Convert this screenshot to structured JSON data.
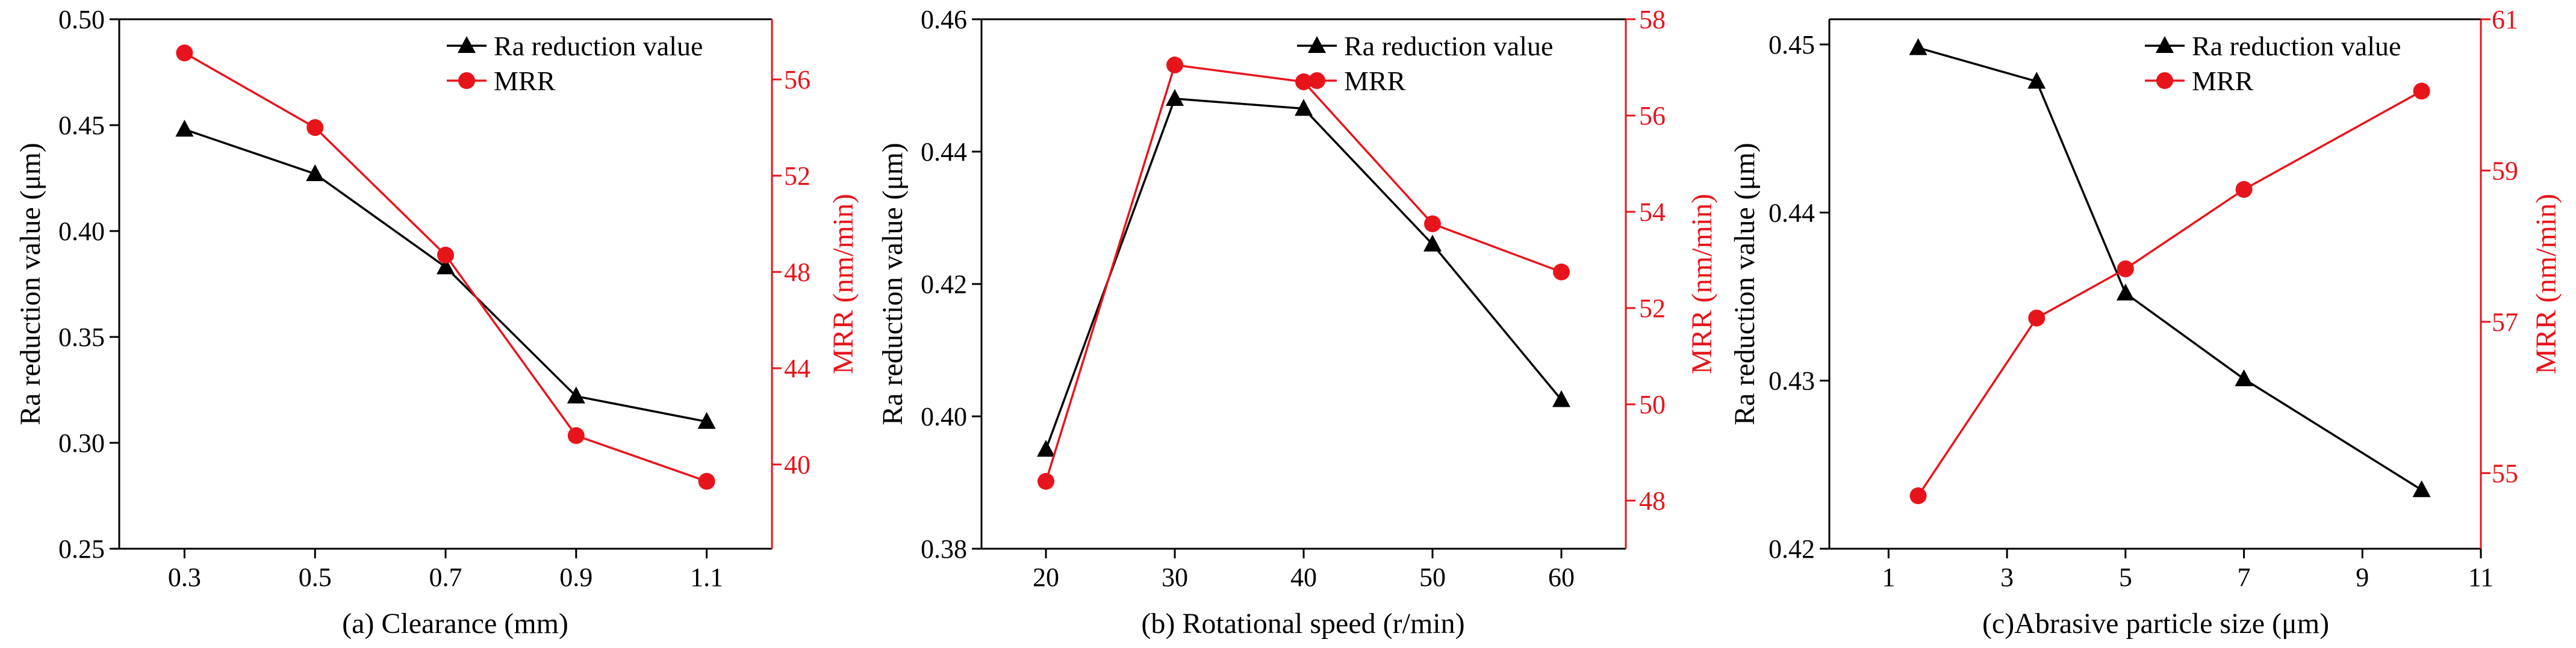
{
  "colors": {
    "black_series": "#000000",
    "red_series": "#e8141b",
    "axis": "#000000"
  },
  "chart_data": [
    {
      "type": "line",
      "caption": "(a) Clearance (mm)",
      "title": "",
      "categories": [
        "0.3",
        "0.5",
        "0.7",
        "0.9",
        "1.1"
      ],
      "x": [
        0.3,
        0.5,
        0.7,
        0.9,
        1.1
      ],
      "xlim": [
        0.2,
        1.2
      ],
      "xticks": [
        0.3,
        0.5,
        0.7,
        0.9,
        1.1
      ],
      "xtick_labels": [
        "0.3",
        "0.5",
        "0.7",
        "0.9",
        "1.1"
      ],
      "ylabel_left": "Ra reduction value (μm)",
      "ylim_left": [
        0.25,
        0.5
      ],
      "yticks_left": [
        0.25,
        0.3,
        0.35,
        0.4,
        0.45,
        0.5
      ],
      "ytick_labels_left": [
        "0.25",
        "0.30",
        "0.35",
        "0.40",
        "0.45",
        "0.50"
      ],
      "ylabel_right": "MRR (nm/min)",
      "ylim_right": [
        36.5,
        58.5
      ],
      "yticks_right": [
        40,
        44,
        48,
        52,
        56
      ],
      "ytick_labels_right": [
        "40",
        "44",
        "48",
        "52",
        "56"
      ],
      "legend_position": "top-right",
      "series": [
        {
          "name": "Ra reduction value",
          "axis": "left",
          "marker": "triangle",
          "color": "#000000",
          "values": [
            0.448,
            0.427,
            0.383,
            0.322,
            0.31
          ]
        },
        {
          "name": "MRR",
          "axis": "right",
          "marker": "circle",
          "color": "#e8141b",
          "values": [
            57.1,
            54.0,
            48.7,
            41.2,
            39.3
          ]
        }
      ]
    },
    {
      "type": "line",
      "caption": "(b) Rotational speed (r/min)",
      "title": "",
      "categories": [
        "20",
        "30",
        "40",
        "50",
        "60"
      ],
      "x": [
        20,
        30,
        40,
        50,
        60
      ],
      "xlim": [
        15,
        65
      ],
      "xticks": [
        20,
        30,
        40,
        50,
        60
      ],
      "xtick_labels": [
        "20",
        "30",
        "40",
        "50",
        "60"
      ],
      "ylabel_left": "Ra reduction value (μm)",
      "ylim_left": [
        0.38,
        0.46
      ],
      "yticks_left": [
        0.38,
        0.4,
        0.42,
        0.44,
        0.46
      ],
      "ytick_labels_left": [
        "0.38",
        "0.40",
        "0.42",
        "0.44",
        "0.46"
      ],
      "ylabel_right": "MRR (nm/min)",
      "ylim_right": [
        47,
        58
      ],
      "yticks_right": [
        48,
        50,
        52,
        54,
        56,
        58
      ],
      "ytick_labels_right": [
        "48",
        "50",
        "52",
        "54",
        "56",
        "58"
      ],
      "legend_position": "top-right",
      "series": [
        {
          "name": "Ra reduction value",
          "axis": "left",
          "marker": "triangle",
          "color": "#000000",
          "values": [
            0.395,
            0.448,
            0.4465,
            0.426,
            0.4025
          ]
        },
        {
          "name": "MRR",
          "axis": "right",
          "marker": "circle",
          "color": "#e8141b",
          "values": [
            48.4,
            57.05,
            56.7,
            53.75,
            52.75
          ]
        }
      ]
    },
    {
      "type": "line",
      "caption": "(c)Abrasive particle size (μm)",
      "title": "",
      "categories": [
        "1.5",
        "3.5",
        "5",
        "7",
        "10"
      ],
      "x": [
        1.5,
        3.5,
        5,
        7,
        10
      ],
      "xlim": [
        0,
        11
      ],
      "xticks": [
        1,
        3,
        5,
        7,
        9,
        11
      ],
      "xtick_labels": [
        "1",
        "3",
        "5",
        "7",
        "9",
        "11"
      ],
      "ylabel_left": "Ra reduction value (μm)",
      "ylim_left": [
        0.42,
        0.4515
      ],
      "yticks_left": [
        0.42,
        0.43,
        0.44,
        0.45
      ],
      "ytick_labels_left": [
        "0.42",
        "0.43",
        "0.44",
        "0.45"
      ],
      "ylabel_right": "MRR (nm/min)",
      "ylim_right": [
        54,
        61
      ],
      "yticks_right": [
        55,
        57,
        59,
        61
      ],
      "ytick_labels_right": [
        "55",
        "57",
        "59",
        "61"
      ],
      "legend_position": "top-right",
      "series": [
        {
          "name": "Ra reduction value",
          "axis": "left",
          "marker": "triangle",
          "color": "#000000",
          "values": [
            0.4498,
            0.4478,
            0.4352,
            0.4301,
            0.4235
          ]
        },
        {
          "name": "MRR",
          "axis": "right",
          "marker": "circle",
          "color": "#e8141b",
          "values": [
            54.7,
            57.05,
            57.7,
            58.75,
            60.05
          ]
        }
      ]
    }
  ]
}
